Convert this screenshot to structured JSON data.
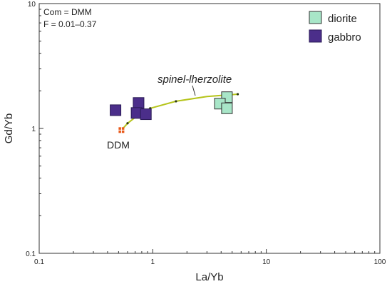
{
  "chart_data": {
    "type": "scatter",
    "xlabel": "La/Yb",
    "ylabel": "Gd/Yb",
    "xscale": "log",
    "yscale": "log",
    "xlim": [
      0.1,
      100
    ],
    "ylim": [
      0.1,
      10
    ],
    "x_ticks": [
      "0.1",
      "1",
      "10",
      "100"
    ],
    "y_ticks": [
      "0.1",
      "1",
      "10"
    ],
    "grid": false,
    "legend_position": "top-right",
    "annotations": {
      "note_line1": "Com = DMM",
      "note_line2": "F = 0.01–0.37",
      "curve_label": "spinel-lherzolite",
      "point_label": "DDM"
    },
    "series": [
      {
        "name": "diorite",
        "marker": "square",
        "color": "#a8e6c8",
        "edge_color": "#333333",
        "points": [
          {
            "x": 4.5,
            "y": 1.78
          },
          {
            "x": 3.9,
            "y": 1.58
          },
          {
            "x": 4.5,
            "y": 1.45
          }
        ]
      },
      {
        "name": "gabbro",
        "marker": "square",
        "color": "#4b2e8a",
        "edge_color": "#2a1a55",
        "points": [
          {
            "x": 0.47,
            "y": 1.4
          },
          {
            "x": 0.75,
            "y": 1.6
          },
          {
            "x": 0.72,
            "y": 1.33
          },
          {
            "x": 0.87,
            "y": 1.3
          }
        ]
      }
    ],
    "model_curve": {
      "name": "spinel-lherzolite",
      "color": "#b5c41a",
      "points": [
        {
          "x": 0.53,
          "y": 0.97
        },
        {
          "x": 0.6,
          "y": 1.1
        },
        {
          "x": 0.72,
          "y": 1.25
        },
        {
          "x": 0.95,
          "y": 1.45
        },
        {
          "x": 1.6,
          "y": 1.65
        },
        {
          "x": 3.0,
          "y": 1.8
        },
        {
          "x": 5.6,
          "y": 1.88
        }
      ],
      "tick_marks": [
        {
          "x": 0.6,
          "y": 1.1
        },
        {
          "x": 0.95,
          "y": 1.45
        },
        {
          "x": 1.6,
          "y": 1.65
        },
        {
          "x": 5.6,
          "y": 1.88
        }
      ]
    },
    "ddm_point": {
      "x": 0.53,
      "y": 0.97,
      "color": "#e8591a"
    }
  }
}
